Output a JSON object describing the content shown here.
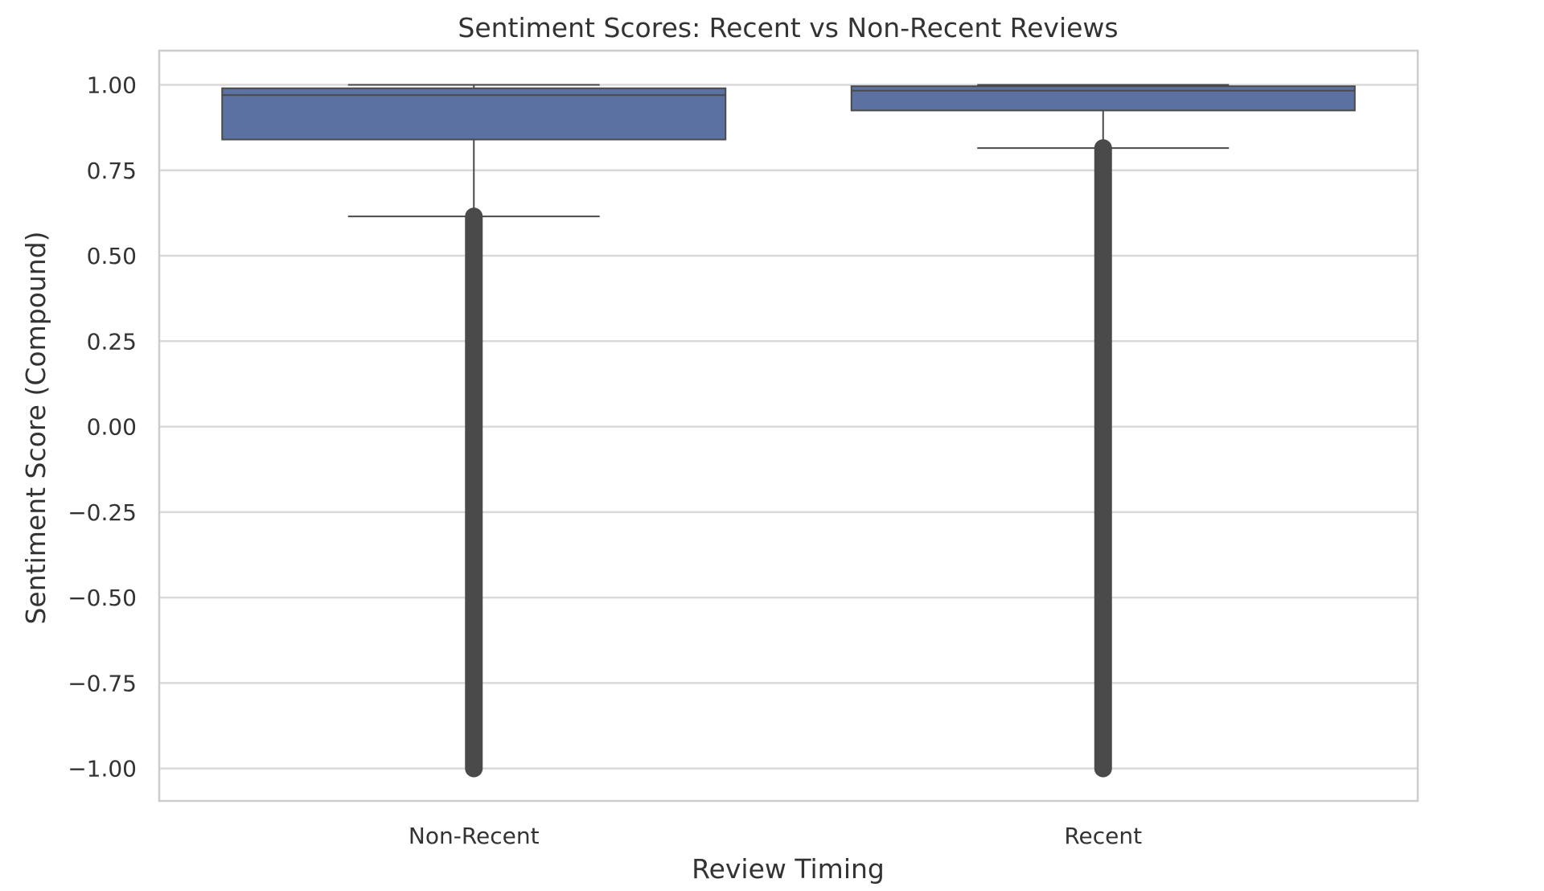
{
  "chart_data": {
    "type": "box",
    "title": "Sentiment Scores: Recent vs Non-Recent Reviews",
    "xlabel": "Review Timing",
    "ylabel": "Sentiment Score (Compound)",
    "ylim": [
      -1.095,
      1.1
    ],
    "yticks": [
      {
        "value": 1.0,
        "label": "1.00"
      },
      {
        "value": 0.75,
        "label": "0.75"
      },
      {
        "value": 0.5,
        "label": "0.50"
      },
      {
        "value": 0.25,
        "label": "0.25"
      },
      {
        "value": 0.0,
        "label": "0.00"
      },
      {
        "value": -0.25,
        "label": "−0.25"
      },
      {
        "value": -0.5,
        "label": "−0.50"
      },
      {
        "value": -0.75,
        "label": "−0.75"
      },
      {
        "value": -1.0,
        "label": "−1.00"
      }
    ],
    "grid": true,
    "categories": [
      "Non-Recent",
      "Recent"
    ],
    "boxes": [
      {
        "category": "Non-Recent",
        "whisker_low": 0.615,
        "q1": 0.84,
        "median": 0.97,
        "q3": 0.99,
        "whisker_high": 1.0,
        "outlier_range": [
          -1.0,
          0.615
        ]
      },
      {
        "category": "Recent",
        "whisker_low": 0.815,
        "q1": 0.925,
        "median": 0.983,
        "q3": 0.996,
        "whisker_high": 1.0,
        "outlier_range": [
          -1.0,
          0.815
        ]
      }
    ],
    "colors": {
      "box_fill": "#5b71a1",
      "line": "#4a4a4a",
      "grid": "#d9d9d9",
      "frame": "#cccccc",
      "text": "#333333"
    }
  }
}
